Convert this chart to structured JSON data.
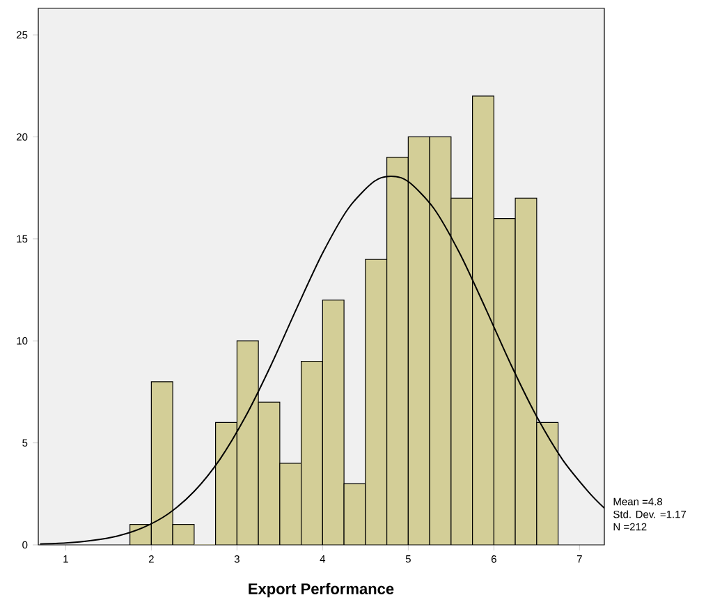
{
  "chart_data": {
    "type": "histogram",
    "xlabel": "Export Performance",
    "bins": [
      1.75,
      2.0,
      2.25,
      2.5,
      2.75,
      3.0,
      3.25,
      3.5,
      3.75,
      4.0,
      4.25,
      4.5,
      4.75,
      5.0,
      5.25,
      5.5,
      5.75,
      6.0,
      6.25,
      6.5,
      6.75
    ],
    "series": [
      {
        "color": "#d3ce97",
        "values": [
          1,
          8,
          1,
          0,
          6,
          10,
          7,
          4,
          9,
          12,
          3,
          14,
          19,
          20,
          20,
          17,
          22,
          16,
          17,
          6
        ]
      },
      {
        "type": "line",
        "color": "#000000",
        "x": [
          0.7,
          1.0,
          1.3,
          1.6,
          1.9,
          2.2,
          2.5,
          2.8,
          3.1,
          3.4,
          3.7,
          4.0,
          4.3,
          4.6,
          4.8,
          5.0,
          5.3,
          5.6,
          5.9,
          6.2,
          6.5,
          6.8,
          7.1,
          7.29
        ],
        "values": [
          0.04,
          0.09,
          0.21,
          0.43,
          0.84,
          1.53,
          2.62,
          4.19,
          6.29,
          8.83,
          11.62,
          14.3,
          16.49,
          17.81,
          18.07,
          17.81,
          16.49,
          14.3,
          11.62,
          8.83,
          6.29,
          4.19,
          2.62,
          1.8
        ]
      }
    ],
    "xlim": [
      0.68,
      7.29
    ],
    "ylim": [
      0,
      26.3
    ],
    "xticks": [
      1,
      2,
      3,
      4,
      5,
      6,
      7
    ],
    "yticks": [
      0,
      5,
      10,
      15,
      20,
      25
    ],
    "annotations": [
      "Mean =4.8",
      "Std. Dev. =1.17",
      "N =212"
    ]
  }
}
